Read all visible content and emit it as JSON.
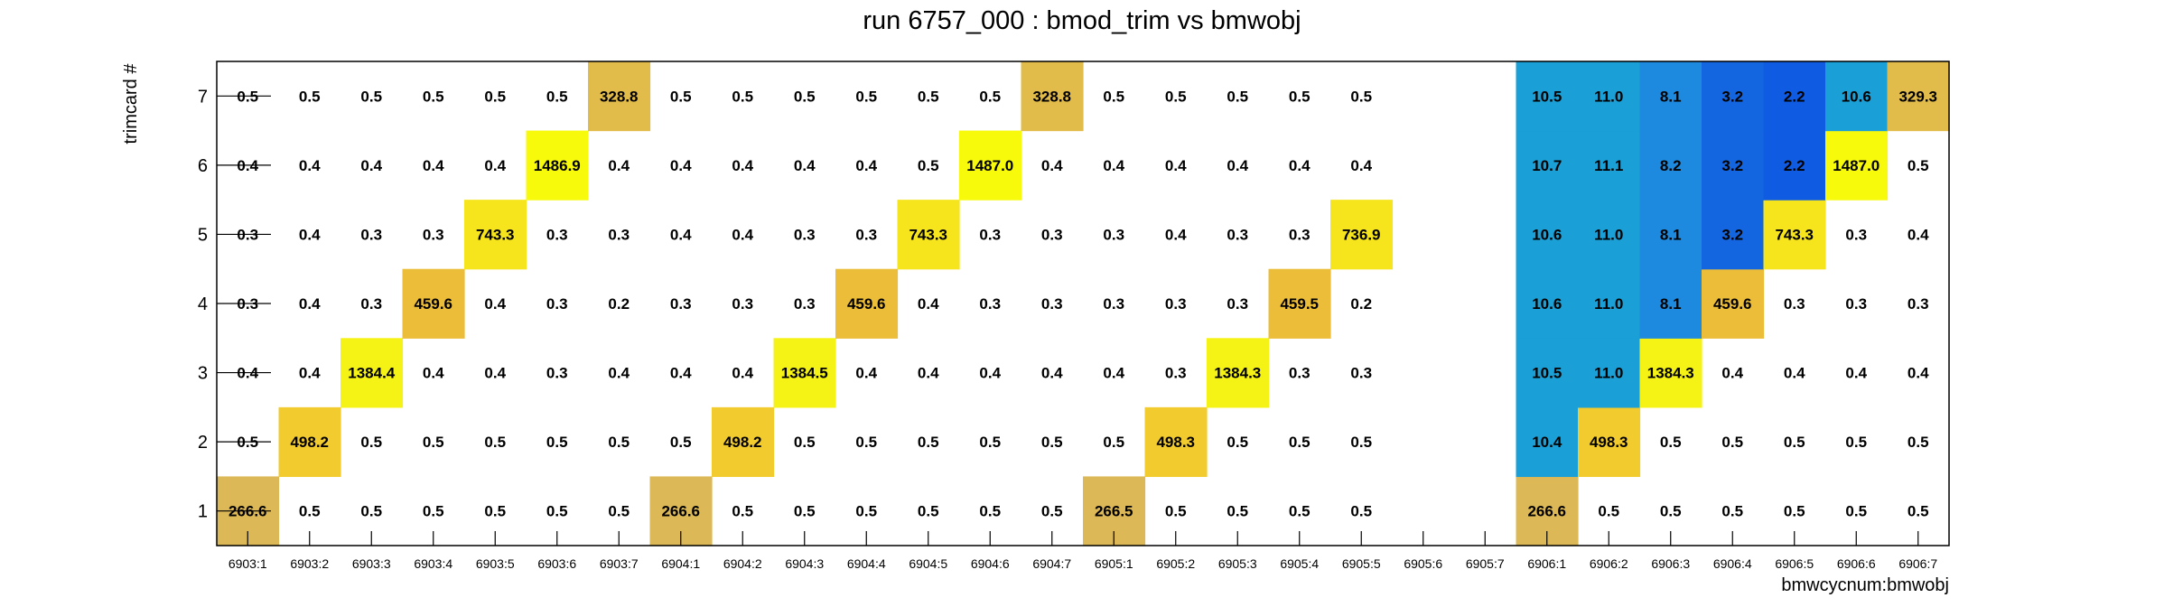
{
  "chart_data": {
    "type": "heatmap",
    "title": "run 6757_000 : bmod_trim vs bmwobj",
    "xlabel": "bmwcycnum:bmwobj",
    "ylabel": "trimcard #",
    "x": [
      "6903:1",
      "6903:2",
      "6903:3",
      "6903:4",
      "6903:5",
      "6903:6",
      "6903:7",
      "6904:1",
      "6904:2",
      "6904:3",
      "6904:4",
      "6904:5",
      "6904:6",
      "6904:7",
      "6905:1",
      "6905:2",
      "6905:3",
      "6905:4",
      "6905:5",
      "6905:6",
      "6905:7",
      "6906:1",
      "6906:2",
      "6906:3",
      "6906:4",
      "6906:5",
      "6906:6",
      "6906:7"
    ],
    "y": [
      "1",
      "2",
      "3",
      "4",
      "5",
      "6",
      "7"
    ],
    "values": [
      [
        266.6,
        0.5,
        0.5,
        0.5,
        0.5,
        0.5,
        0.5,
        266.6,
        0.5,
        0.5,
        0.5,
        0.5,
        0.5,
        0.5,
        266.5,
        0.5,
        0.5,
        0.5,
        0.5,
        null,
        null,
        266.6,
        0.5,
        0.5,
        0.5,
        0.5,
        0.5,
        0.5
      ],
      [
        0.5,
        498.2,
        0.5,
        0.5,
        0.5,
        0.5,
        0.5,
        0.5,
        498.2,
        0.5,
        0.5,
        0.5,
        0.5,
        0.5,
        0.5,
        498.3,
        0.5,
        0.5,
        0.5,
        null,
        null,
        10.4,
        498.3,
        0.5,
        0.5,
        0.5,
        0.5,
        0.5
      ],
      [
        0.4,
        0.4,
        1384.4,
        0.4,
        0.4,
        0.3,
        0.4,
        0.4,
        0.4,
        1384.5,
        0.4,
        0.4,
        0.4,
        0.4,
        0.4,
        0.3,
        1384.3,
        0.3,
        0.3,
        null,
        null,
        10.5,
        11.0,
        1384.3,
        0.4,
        0.4,
        0.4,
        0.4
      ],
      [
        0.3,
        0.4,
        0.3,
        459.6,
        0.4,
        0.3,
        0.2,
        0.3,
        0.3,
        0.3,
        459.6,
        0.4,
        0.3,
        0.3,
        0.3,
        0.3,
        0.3,
        459.5,
        0.2,
        null,
        null,
        10.6,
        11.0,
        8.1,
        459.6,
        0.3,
        0.3,
        0.3
      ],
      [
        0.3,
        0.4,
        0.3,
        0.3,
        743.3,
        0.3,
        0.3,
        0.4,
        0.4,
        0.3,
        0.3,
        743.3,
        0.3,
        0.3,
        0.3,
        0.4,
        0.3,
        0.3,
        736.9,
        null,
        null,
        10.6,
        11.0,
        8.1,
        3.2,
        743.3,
        0.3,
        0.4
      ],
      [
        0.4,
        0.4,
        0.4,
        0.4,
        0.4,
        1486.9,
        0.4,
        0.4,
        0.4,
        0.4,
        0.4,
        0.5,
        1487.0,
        0.4,
        0.4,
        0.4,
        0.4,
        0.4,
        0.4,
        null,
        null,
        10.7,
        11.1,
        8.2,
        3.2,
        2.2,
        1487.0,
        0.5
      ],
      [
        0.5,
        0.5,
        0.5,
        0.5,
        0.5,
        0.5,
        328.8,
        0.5,
        0.5,
        0.5,
        0.5,
        0.5,
        0.5,
        328.8,
        0.5,
        0.5,
        0.5,
        0.5,
        0.5,
        null,
        null,
        10.5,
        11.0,
        8.1,
        3.2,
        2.2,
        10.6,
        329.3
      ]
    ],
    "colors": {
      "high_1480": "#f8fa0c",
      "high_1384": "#f5f215",
      "mid_740": "#f6e51c",
      "mid_498": "#f2cb2e",
      "mid_460": "#ecbd38",
      "mid_329": "#e2bc4a",
      "mid_266": "#dcb956",
      "low_10": "#1a9fd6",
      "low_8": "#1d8adf",
      "low_3": "#1466e0",
      "low_2": "#0f5ce2",
      "near_zero": "#ffffff"
    },
    "grid": false
  }
}
